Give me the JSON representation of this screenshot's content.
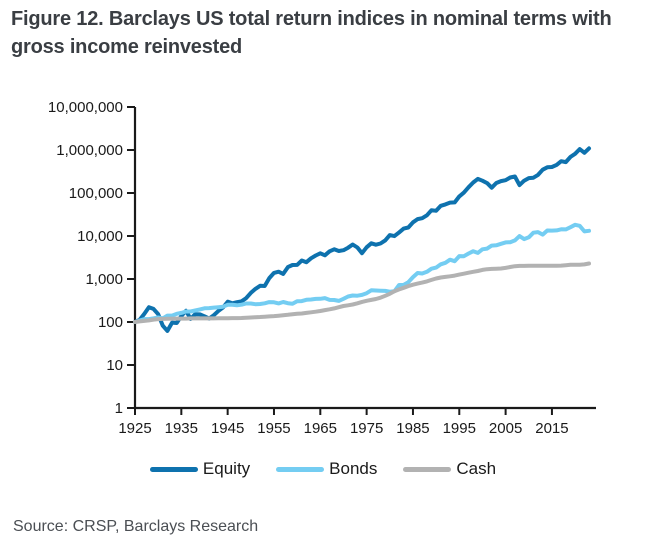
{
  "figure": {
    "title": "Figure 12. Barclays US total return indices in nominal terms with gross income reinvested",
    "source": "Source: CRSP, Barclays Research"
  },
  "colors": {
    "title_text": "#3a3e43",
    "axis": "#1a1a1a",
    "tick_text": "#1a1a1a",
    "source_text": "#4b4f54",
    "equity": "#0e72ae",
    "bonds": "#74cdf2",
    "cash": "#b2b2b2"
  },
  "chart_data": {
    "type": "line",
    "title": "Figure 12. Barclays US total return indices in nominal terms with gross income reinvested",
    "source": "Source: CRSP, Barclays Research",
    "xlabel": "",
    "ylabel": "",
    "x_axis": {
      "range": [
        1925,
        2023
      ],
      "tick_years": [
        1925,
        1935,
        1945,
        1955,
        1965,
        1975,
        1985,
        1995,
        2005,
        2015
      ],
      "tick_labels": [
        "1925",
        "1935",
        "1945",
        "1955",
        "1965",
        "1975",
        "1985",
        "1995",
        "2005",
        "2015"
      ]
    },
    "y_axis": {
      "scale": "log",
      "range": [
        1,
        10000000
      ],
      "tick_values": [
        1,
        10,
        100,
        1000,
        10000,
        100000,
        1000000,
        10000000
      ],
      "tick_labels": [
        "1",
        "10",
        "100",
        "1,000",
        "10,000",
        "100,000",
        "1,000,000",
        "10,000,000"
      ]
    },
    "grid": false,
    "legend_position": "bottom",
    "base_value": 100,
    "x": [
      1925,
      1926,
      1927,
      1928,
      1929,
      1930,
      1931,
      1932,
      1933,
      1934,
      1935,
      1936,
      1937,
      1938,
      1939,
      1940,
      1941,
      1942,
      1943,
      1944,
      1945,
      1946,
      1947,
      1948,
      1949,
      1950,
      1951,
      1952,
      1953,
      1954,
      1955,
      1956,
      1957,
      1958,
      1959,
      1960,
      1961,
      1962,
      1963,
      1964,
      1965,
      1966,
      1967,
      1968,
      1969,
      1970,
      1971,
      1972,
      1973,
      1974,
      1975,
      1976,
      1977,
      1978,
      1979,
      1980,
      1981,
      1982,
      1983,
      1984,
      1985,
      1986,
      1987,
      1988,
      1989,
      1990,
      1991,
      1992,
      1993,
      1994,
      1995,
      1996,
      1997,
      1998,
      1999,
      2000,
      2001,
      2002,
      2003,
      2004,
      2005,
      2006,
      2007,
      2008,
      2009,
      2010,
      2011,
      2012,
      2013,
      2014,
      2015,
      2016,
      2017,
      2018,
      2019,
      2020,
      2021,
      2022,
      2023
    ],
    "series": [
      {
        "name": "Equity",
        "color": "#0e72ae",
        "values": [
          100,
          112,
          154,
          221,
          202,
          152,
          82,
          62,
          97,
          95,
          138,
          182,
          118,
          152,
          150,
          136,
          120,
          144,
          181,
          217,
          296,
          272,
          288,
          303,
          360,
          474,
          588,
          696,
          689,
          1052,
          1384,
          1475,
          1316,
          1887,
          2113,
          2124,
          2695,
          2461,
          3022,
          3521,
          3961,
          3561,
          4415,
          4905,
          4488,
          4668,
          5335,
          6349,
          5416,
          3981,
          5462,
          6761,
          6274,
          6688,
          7919,
          10485,
          9971,
          12105,
          14829,
          15763,
          20839,
          24694,
          25978,
          30342,
          39900,
          38623,
          50442,
          54326,
          59759,
          60536,
          83177,
          102391,
          136590,
          175651,
          212537,
          193196,
          170207,
          132591,
          170644,
          189244,
          198517,
          229883,
          242527,
          152792,
          193282,
          222467,
          227139,
          263482,
          348851,
          396644,
          402197,
          450460,
          548660,
          524519,
          689742,
          816654,
          1051035,
          860798,
          1087188
        ]
      },
      {
        "name": "Bonds",
        "color": "#74cdf2",
        "values": [
          100,
          108,
          117,
          117,
          121,
          127,
          121,
          141,
          141,
          155,
          163,
          175,
          175,
          185,
          196,
          208,
          210,
          216,
          221,
          227,
          251,
          251,
          245,
          253,
          269,
          270,
          259,
          262,
          272,
          291,
          287,
          271,
          292,
          274,
          267,
          304,
          307,
          329,
          333,
          344,
          347,
          359,
          326,
          325,
          309,
          346,
          392,
          414,
          409,
          427,
          467,
          545,
          541,
          535,
          528,
          507,
          517,
          726,
          731,
          844,
          1106,
          1377,
          1340,
          1470,
          1736,
          1844,
          2200,
          2378,
          2811,
          2592,
          3414,
          3383,
          3921,
          4434,
          4035,
          4902,
          5083,
          5988,
          6072,
          6588,
          7102,
          7187,
          7898,
          9944,
          8462,
          9317,
          11940,
          12340,
          10760,
          13420,
          13330,
          13490,
          14330,
          14240,
          15980,
          18200,
          17290,
          12800,
          13210
        ]
      },
      {
        "name": "Cash",
        "color": "#b2b2b2",
        "values": [
          100,
          103,
          106,
          109,
          114,
          117,
          118,
          119,
          120,
          120,
          120,
          120,
          121,
          121,
          121,
          121,
          121,
          121,
          122,
          122,
          122,
          123,
          123,
          124,
          126,
          127,
          129,
          131,
          133,
          135,
          137,
          140,
          144,
          147,
          151,
          155,
          158,
          163,
          168,
          174,
          180,
          189,
          197,
          207,
          221,
          235,
          245,
          255,
          272,
          294,
          311,
          327,
          343,
          368,
          406,
          452,
          518,
          573,
          623,
          684,
          737,
          783,
          826,
          878,
          952,
          1026,
          1083,
          1121,
          1154,
          1199,
          1266,
          1331,
          1401,
          1469,
          1538,
          1628,
          1690,
          1718,
          1735,
          1757,
          1810,
          1897,
          1986,
          2018,
          2021,
          2023,
          2024,
          2026,
          2027,
          2028,
          2028,
          2034,
          2052,
          2090,
          2135,
          2148,
          2149,
          2180,
          2290
        ]
      }
    ]
  }
}
